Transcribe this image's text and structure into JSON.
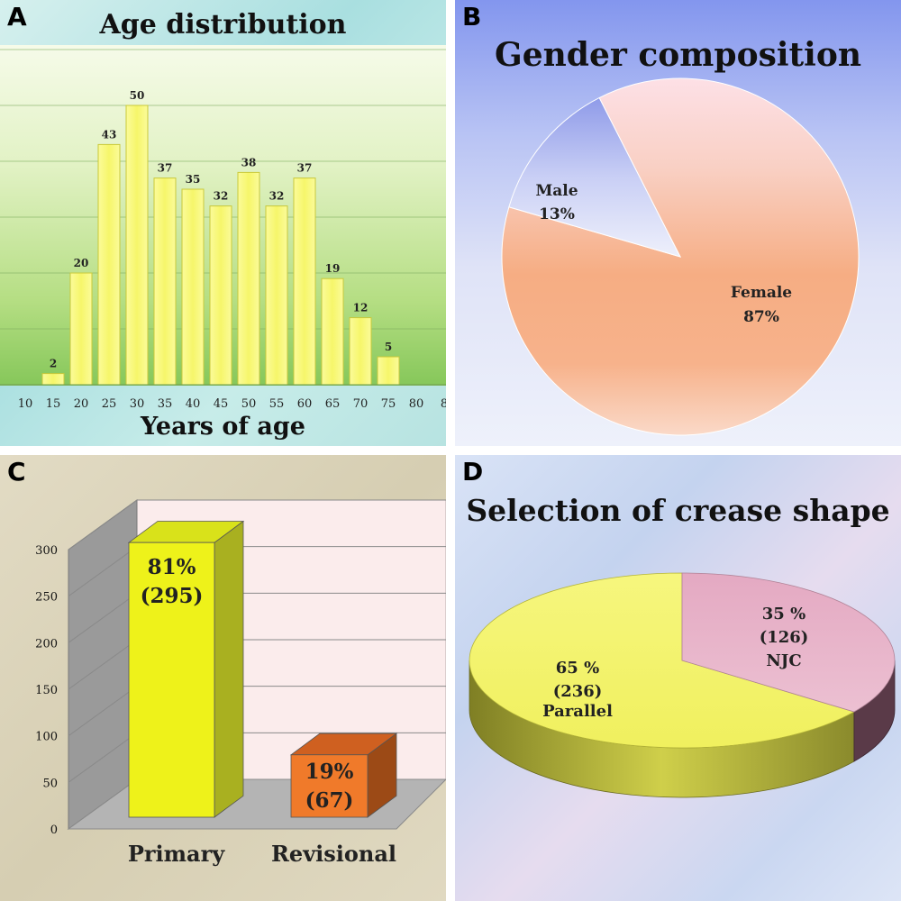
{
  "panels": {
    "a": {
      "label": "A"
    },
    "b": {
      "label": "B"
    },
    "c": {
      "label": "C"
    },
    "d": {
      "label": "D"
    }
  },
  "chart_data": [
    {
      "type": "bar",
      "title": "Age distribution",
      "xlabel": "Years of age",
      "ylabel": "",
      "x_tick_labels": [
        "10",
        "15",
        "20",
        "25",
        "30",
        "35",
        "40",
        "45",
        "50",
        "55",
        "60",
        "65",
        "70",
        "75",
        "80",
        "8"
      ],
      "categories": [
        "15",
        "20",
        "25",
        "30",
        "35",
        "40",
        "45",
        "50",
        "55",
        "60",
        "65",
        "70",
        "75"
      ],
      "values": [
        2,
        20,
        43,
        50,
        37,
        35,
        32,
        38,
        32,
        37,
        19,
        12,
        5
      ],
      "data_labels": [
        "2",
        "20",
        "43",
        "50",
        "37",
        "35",
        "32",
        "38",
        "32",
        "37",
        "19",
        "12",
        "5"
      ],
      "ylim": [
        0,
        60
      ],
      "grid": true,
      "colors": {
        "bar": "#f5f56a",
        "bar_edge": "#c9c93a"
      }
    },
    {
      "type": "pie",
      "title": "Gender composition",
      "labels": [
        "Female",
        "Male"
      ],
      "values": [
        87,
        13
      ],
      "slice_labels": [
        {
          "name": "Female",
          "pct": "87%"
        },
        {
          "name": "Male",
          "pct": "13%"
        }
      ],
      "colors": {
        "Female": "#f6a97a",
        "Male": "#c7cdf2"
      }
    },
    {
      "type": "bar",
      "title": "",
      "categories": [
        "Primary",
        "Revisional"
      ],
      "values": [
        295,
        67
      ],
      "bar_labels": [
        {
          "pct": "81%",
          "count": "(295)"
        },
        {
          "pct": "19%",
          "count": "(67)"
        }
      ],
      "y_ticks": [
        "0",
        "50",
        "100",
        "150",
        "200",
        "250",
        "300"
      ],
      "ylim": [
        0,
        300
      ],
      "grid": true,
      "colors": {
        "Primary": "#eef21a",
        "Revisional": "#f07a2a"
      }
    },
    {
      "type": "pie",
      "title": "Selection of crease shape",
      "labels": [
        "NJC",
        "Parallel"
      ],
      "values": [
        35,
        65
      ],
      "slice_labels": [
        {
          "pct": "35 %",
          "count": "(126)",
          "name": "NJC"
        },
        {
          "pct": "65 %",
          "count": "(236)",
          "name": "Parallel"
        }
      ],
      "colors": {
        "NJC": "#e6b1c8",
        "Parallel": "#f3f36e"
      }
    }
  ]
}
